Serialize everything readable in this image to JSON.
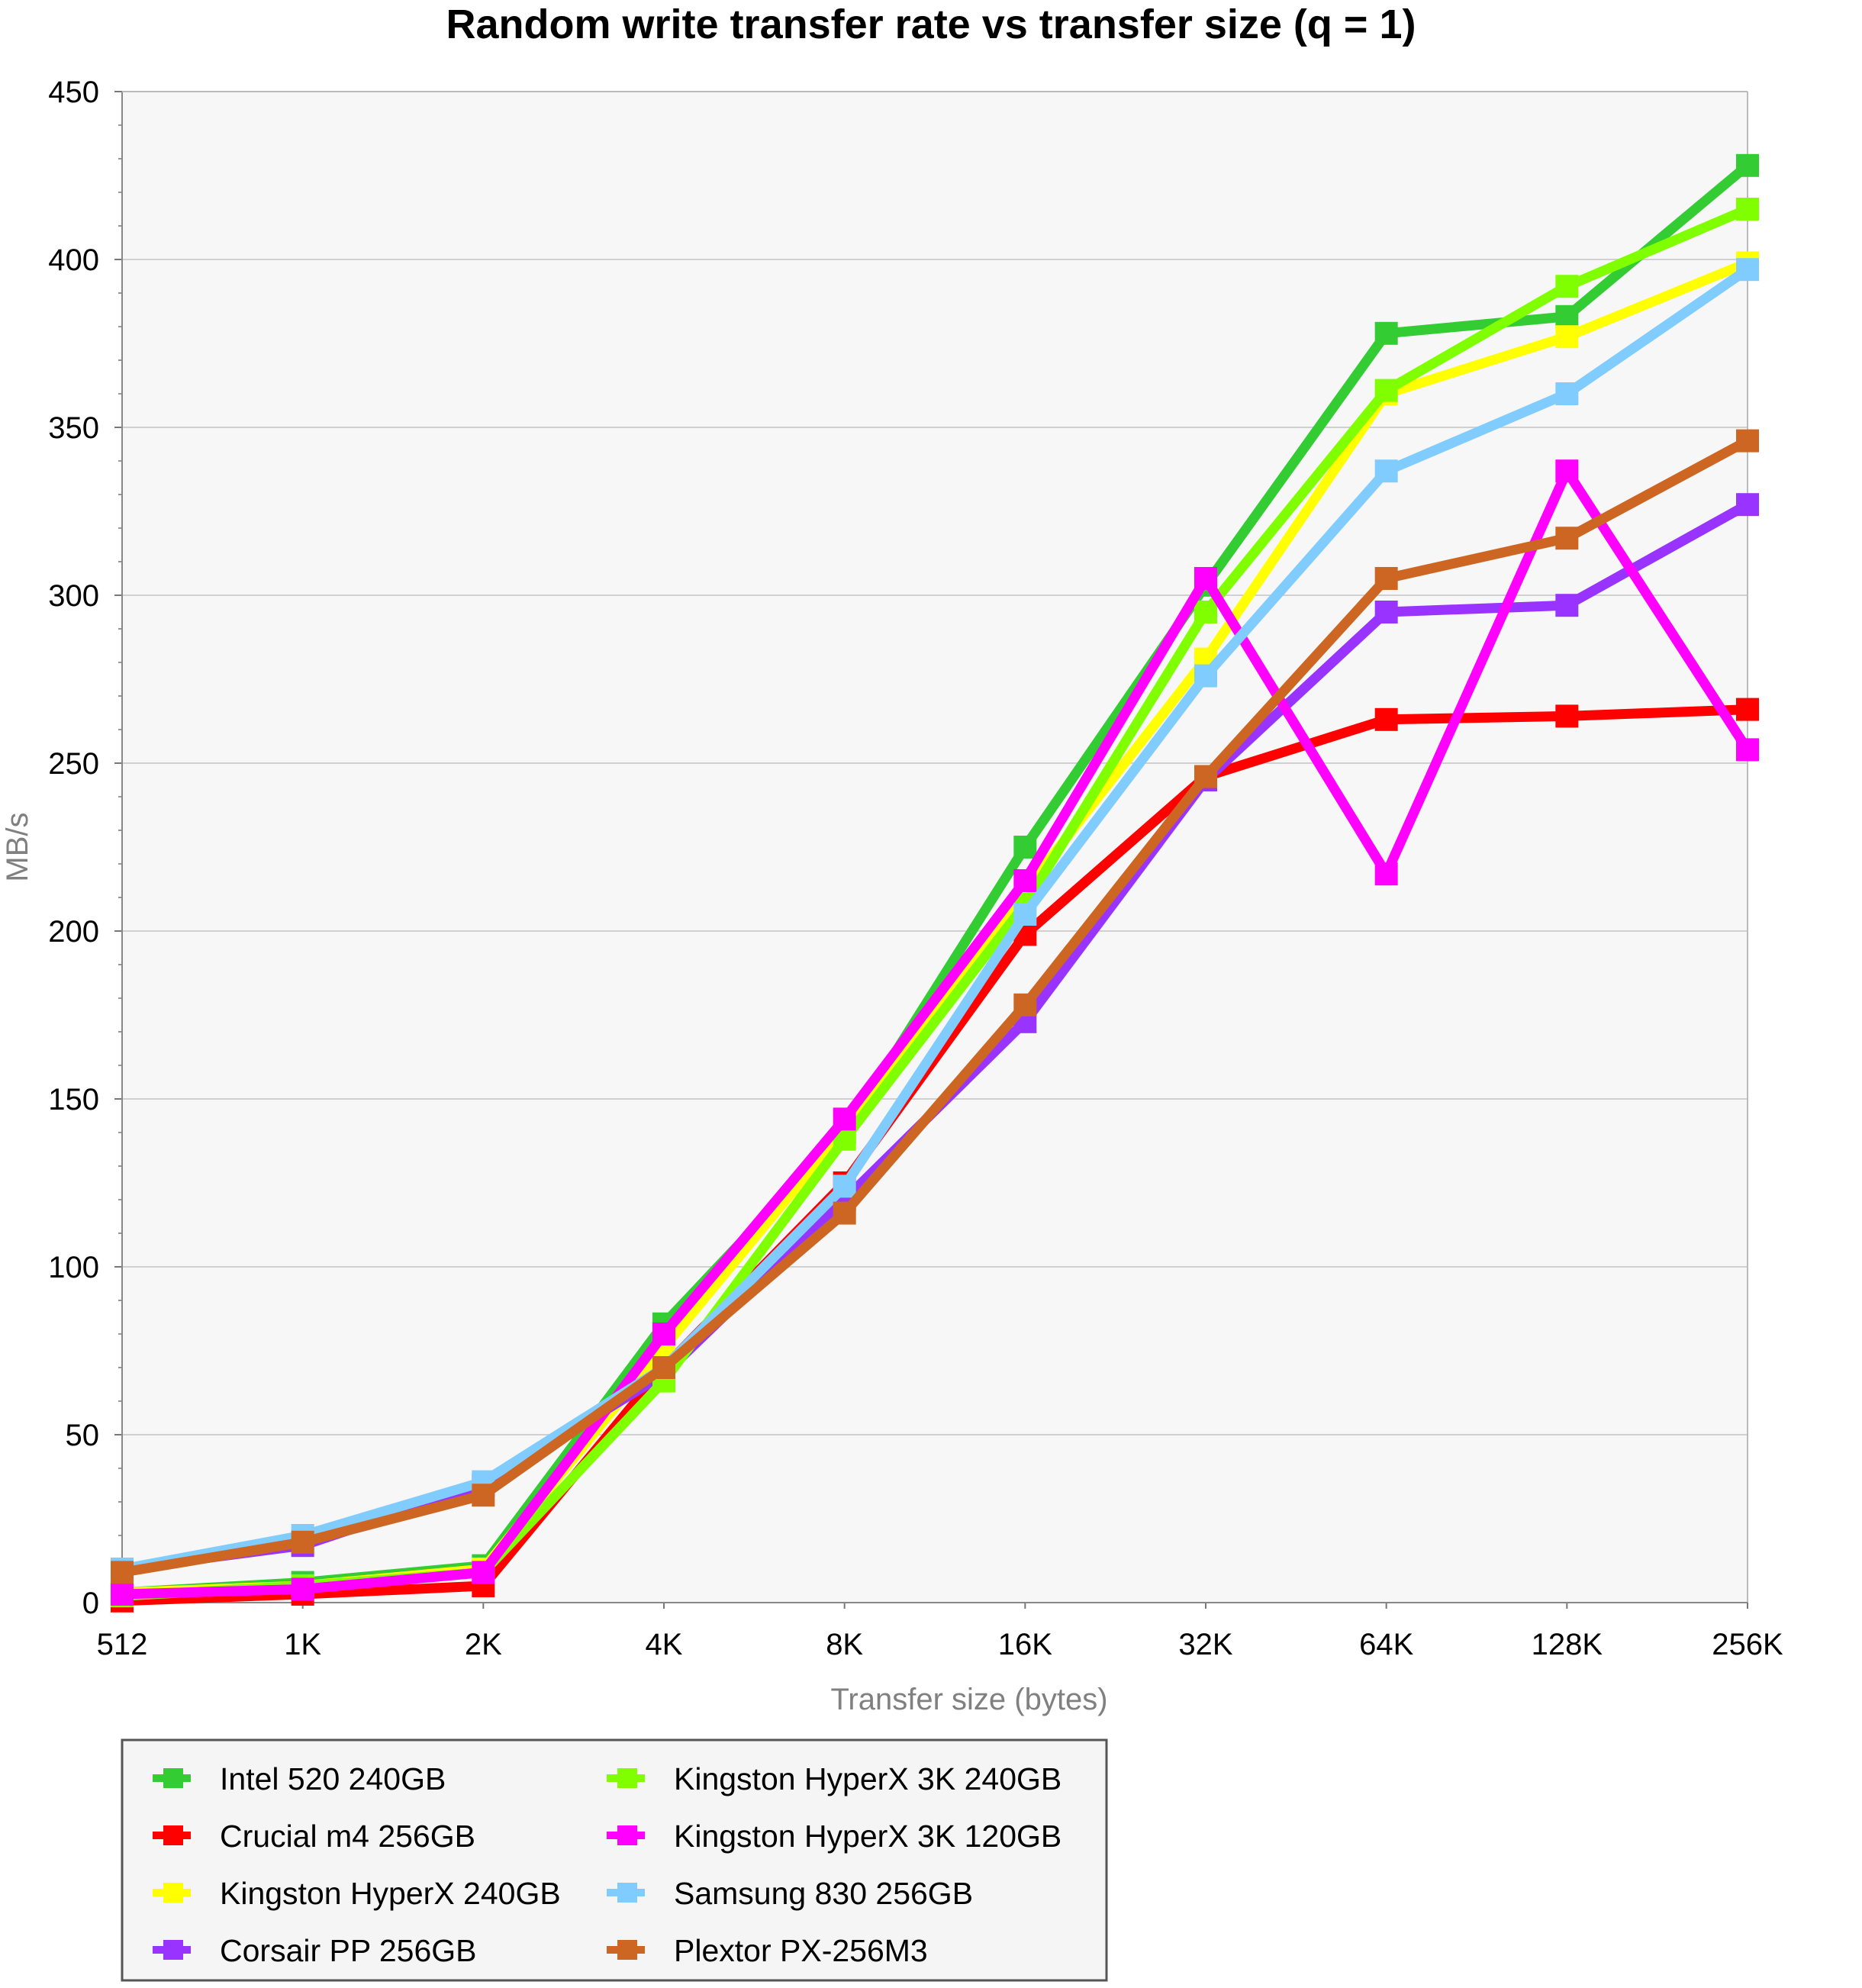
{
  "chart_data": {
    "type": "line",
    "title": "Random write transfer rate vs transfer size (q = 1)",
    "xlabel": "Transfer size (bytes)",
    "ylabel": "MB/s",
    "categories": [
      "512",
      "1K",
      "2K",
      "4K",
      "8K",
      "16K",
      "32K",
      "64K",
      "128K",
      "256K"
    ],
    "ylim": [
      0,
      450
    ],
    "yticks": [
      0,
      50,
      100,
      150,
      200,
      250,
      300,
      350,
      400,
      450
    ],
    "grid": true,
    "legend_position": "bottom",
    "series": [
      {
        "name": "Intel 520 240GB",
        "color": "#33cc33",
        "values": [
          3,
          6,
          11,
          83,
          140,
          225,
          303,
          378,
          383,
          428
        ]
      },
      {
        "name": "Crucial m4 256GB",
        "color": "#ff0000",
        "values": [
          0.5,
          2.5,
          5,
          70,
          125,
          199,
          246,
          263,
          264,
          266
        ]
      },
      {
        "name": "Kingston HyperX 240GB",
        "color": "#ffff00",
        "values": [
          3,
          5,
          10,
          76,
          141,
          212,
          281,
          360,
          377,
          399
        ]
      },
      {
        "name": "Corsair PP 256GB",
        "color": "#9933ff",
        "values": [
          10,
          17,
          35,
          68,
          120,
          173,
          245,
          295,
          297,
          327
        ]
      },
      {
        "name": "Kingston HyperX 3K 240GB",
        "color": "#80ff00",
        "values": [
          2,
          5,
          9,
          66,
          138,
          208,
          295,
          361,
          392,
          415
        ]
      },
      {
        "name": "Kingston HyperX 3K 120GB",
        "color": "#ff00ff",
        "values": [
          2.5,
          4,
          9,
          80,
          144,
          215,
          305,
          217,
          337,
          254
        ]
      },
      {
        "name": "Samsung 830 256GB",
        "color": "#80ccff",
        "values": [
          10,
          20,
          36,
          70,
          124,
          205,
          276,
          337,
          360,
          397
        ]
      },
      {
        "name": "Plextor PX-256M3",
        "color": "#cc6622",
        "values": [
          9,
          18,
          32,
          70,
          116,
          178,
          246,
          305,
          317,
          346
        ]
      }
    ]
  }
}
